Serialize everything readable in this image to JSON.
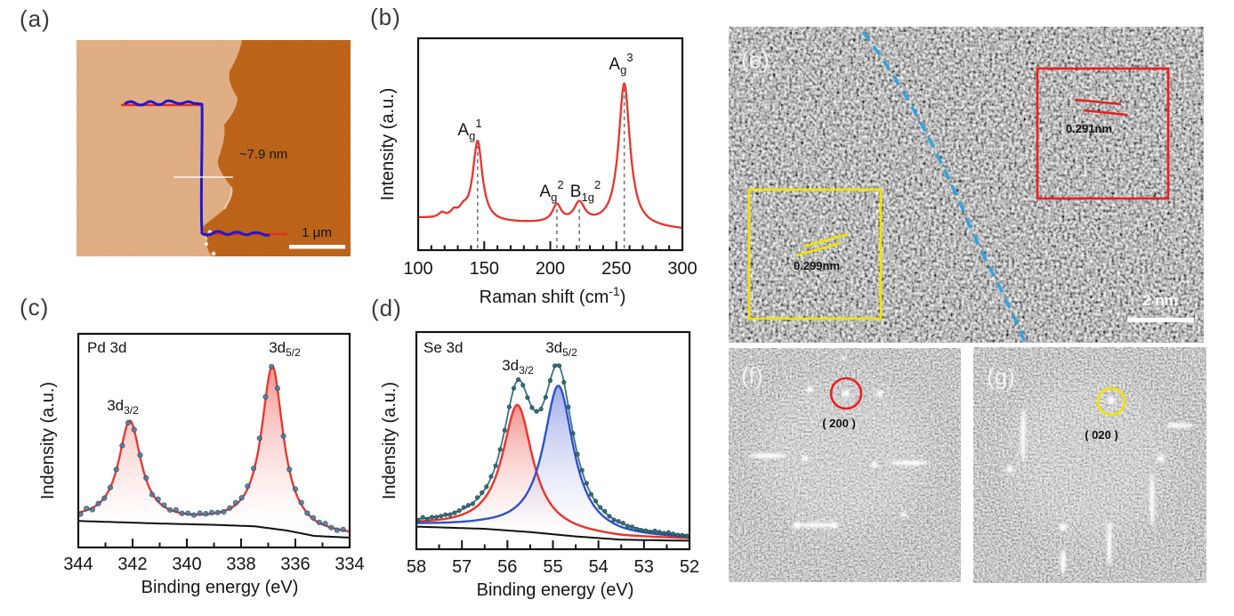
{
  "labels": {
    "a": "(a)",
    "b": "(b)",
    "c": "(c)",
    "d": "(d)",
    "e": "(e)",
    "f": "(f)",
    "g": "(g)"
  },
  "panel_a": {
    "height_label": "~7.9 nm",
    "scale_label": "1 μm"
  },
  "panel_b": {
    "ylabel": "Intensity (a.u.)",
    "xlabel_pre": "Raman shift (cm",
    "xlabel_sup": "-1",
    "xlabel_post": ")",
    "ticks": [
      "100",
      "150",
      "200",
      "250",
      "300"
    ],
    "peaks": [
      {
        "base": "A",
        "sub": "g",
        "sup": "1"
      },
      {
        "base": "A",
        "sub": "g",
        "sup": "2"
      },
      {
        "base": "B",
        "sub": "1g",
        "sup": "2"
      },
      {
        "base": "A",
        "sub": "g",
        "sup": "3"
      }
    ]
  },
  "panel_c": {
    "title": "Pd 3d",
    "ylabel": "Indensity (a.u.)",
    "xlabel": "Binding energy (eV)",
    "ticks": [
      "344",
      "342",
      "340",
      "338",
      "336",
      "334"
    ],
    "peaks": [
      {
        "base": "3d",
        "sub": "3/2"
      },
      {
        "base": "3d",
        "sub": "5/2"
      }
    ]
  },
  "panel_d": {
    "title": "Se 3d",
    "ylabel": "Indensity (a.u.)",
    "xlabel": "Binding energy (eV)",
    "ticks": [
      "58",
      "57",
      "56",
      "55",
      "54",
      "53",
      "52"
    ],
    "peaks": [
      {
        "base": "3d",
        "sub": "3/2"
      },
      {
        "base": "3d",
        "sub": "5/2"
      }
    ]
  },
  "panel_e": {
    "red_spacing": "0.291nm",
    "yellow_spacing": "0.299nm",
    "scale_label": "2 nm"
  },
  "panel_f": {
    "plane": "( 200 )"
  },
  "panel_g": {
    "plane": "( 020 )"
  },
  "colors": {
    "raman_line": "#e8342c",
    "pd_fit": "#e8342c",
    "se_red": "#e8342c",
    "se_blue": "#2f52c8",
    "dots_c": "#4a7da0",
    "dots_c_edge": "#274b63",
    "dots_d": "#2e6d7a",
    "dots_d_edge": "#173f47",
    "envelope_d": "#2e6d7a",
    "baseline_black": "#111111",
    "afm_flake": "#dfab80",
    "afm_substrate": "#b95f12",
    "profile_blue": "#2316d0",
    "profile_red": "#e03024",
    "annotation_white": "#ffffff",
    "annotation_red": "#e82020",
    "annotation_yellow": "#f2e300",
    "dashed_blue": "#35a3dc",
    "dash_gray": "#777777"
  },
  "chart_data": [
    {
      "id": "b",
      "type": "line",
      "title": "",
      "xlabel": "Raman shift (cm⁻¹)",
      "ylabel": "Intensity (a.u.)",
      "xleft": 100,
      "xright": 300,
      "xlim": [
        100,
        300
      ],
      "grid": false,
      "major_ticks": [
        100,
        150,
        200,
        250,
        300
      ],
      "minor_step": 10,
      "baseline_points": [
        [
          100,
          0.15
        ],
        [
          140,
          0.138
        ],
        [
          160,
          0.128
        ],
        [
          200,
          0.123
        ],
        [
          240,
          0.115
        ],
        [
          300,
          0.095
        ]
      ],
      "peaks": [
        {
          "center": 118,
          "amp": 0.022,
          "gamma": 3.0
        },
        {
          "center": 127,
          "amp": 0.028,
          "gamma": 3.0
        },
        {
          "center": 134,
          "amp": 0.034,
          "gamma": 3.5
        },
        {
          "center": 145,
          "amp": 0.375,
          "gamma": 4.3,
          "annotation": "A_g^1",
          "dashed": true
        },
        {
          "center": 205,
          "amp": 0.082,
          "gamma": 4.0,
          "annotation": "A_g^2",
          "dashed": true
        },
        {
          "center": 222,
          "amp": 0.093,
          "gamma": 5.0,
          "annotation": "B_1g^2",
          "dashed": true
        },
        {
          "center": 256,
          "amp": 0.675,
          "gamma": 5.2,
          "annotation": "A_g^3",
          "dashed": true
        }
      ]
    },
    {
      "id": "c",
      "type": "line",
      "title": "Pd 3d",
      "xlabel": "Binding energy (eV)",
      "ylabel": "Indensity (a.u.)",
      "xleft": 344,
      "xright": 334,
      "xlim": [
        344,
        334
      ],
      "grid": false,
      "major_ticks": [
        344,
        342,
        340,
        338,
        336,
        334
      ],
      "minor_step": 1,
      "baseline_points": [
        [
          334,
          0.052
        ],
        [
          335.3,
          0.06
        ],
        [
          336.3,
          0.085
        ],
        [
          337.5,
          0.105
        ],
        [
          339,
          0.112
        ],
        [
          341,
          0.118
        ],
        [
          344,
          0.13
        ]
      ],
      "peaks": [
        {
          "center": 342.1,
          "amp": 0.465,
          "gamma": 0.5,
          "annotation": "3d_3/2"
        },
        {
          "center": 336.85,
          "amp": 0.75,
          "gamma": 0.48,
          "annotation": "3d_5/2"
        }
      ],
      "dot_step": 0.22,
      "dot_jitter": 0.02,
      "dots_extra": [
        [
          337.7,
          0.018,
          0.5
        ]
      ]
    },
    {
      "id": "d",
      "type": "line",
      "title": "Se 3d",
      "xlabel": "Binding energy (eV)",
      "ylabel": "Indensity (a.u.)",
      "xleft": 58,
      "xright": 52,
      "xlim": [
        58,
        52
      ],
      "grid": false,
      "major_ticks": [
        58,
        57,
        56,
        55,
        54,
        53,
        52
      ],
      "minor_step": 0.5,
      "baseline_points": [
        [
          52,
          0.045
        ],
        [
          53.5,
          0.05
        ],
        [
          54.5,
          0.065
        ],
        [
          55.5,
          0.085
        ],
        [
          56.5,
          0.1
        ],
        [
          58,
          0.11
        ]
      ],
      "peaks": [
        {
          "center": 55.78,
          "amp": 0.575,
          "gamma": 0.4,
          "annotation": "3d_3/2",
          "component": "red"
        },
        {
          "center": 54.88,
          "amp": 0.68,
          "gamma": 0.4,
          "annotation": "3d_5/2",
          "component": "blue"
        }
      ],
      "dot_step": 0.1,
      "dot_jitter": 0.012
    }
  ]
}
